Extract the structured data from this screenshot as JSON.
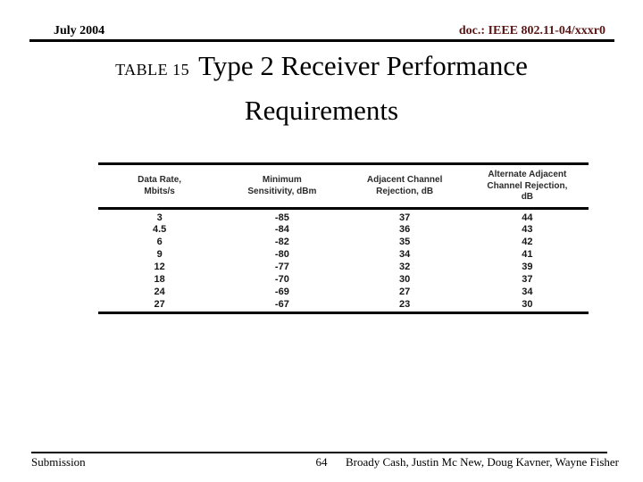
{
  "colors": {
    "doc_text": "#5a1515",
    "rule": "#000000"
  },
  "header": {
    "date": "July 2004",
    "doc": "doc.: IEEE 802.11-04/xxxr0"
  },
  "title": {
    "label": "TABLE 15",
    "line1": "Type 2 Receiver Performance",
    "line2": "Requirements"
  },
  "table": {
    "columns": [
      "Data Rate,\nMbits/s",
      "Minimum\nSensitivity, dBm",
      "Adjacent Channel\nRejection, dB",
      "Alternate Adjacent\nChannel Rejection,\ndB"
    ],
    "rows": [
      [
        "3",
        "-85",
        "37",
        "44"
      ],
      [
        "4.5",
        "-84",
        "36",
        "43"
      ],
      [
        "6",
        "-82",
        "35",
        "42"
      ],
      [
        "9",
        "-80",
        "34",
        "41"
      ],
      [
        "12",
        "-77",
        "32",
        "39"
      ],
      [
        "18",
        "-70",
        "30",
        "37"
      ],
      [
        "24",
        "-69",
        "27",
        "34"
      ],
      [
        "27",
        "-67",
        "23",
        "30"
      ]
    ]
  },
  "footer": {
    "left": "Submission",
    "page": "64",
    "right": "Broady Cash, Justin Mc New, Doug Kavner, Wayne Fisher"
  }
}
